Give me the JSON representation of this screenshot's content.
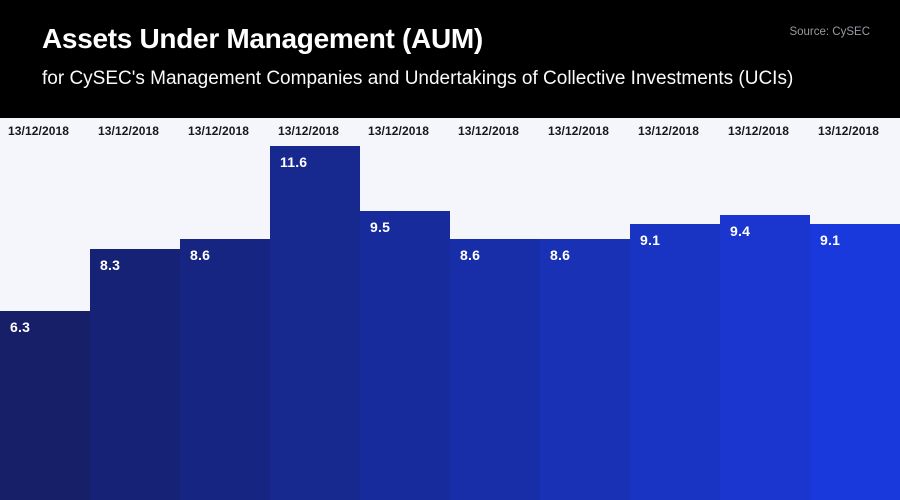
{
  "chart_data": {
    "type": "bar",
    "title": "Assets Under Management (AUM)",
    "subtitle": "for CySEC's Management Companies and Undertakings of Collective Investments (UCIs)",
    "source": "Source: CySEC",
    "categories": [
      "13/12/2018",
      "13/12/2018",
      "13/12/2018",
      "13/12/2018",
      "13/12/2018",
      "13/12/2018",
      "13/12/2018",
      "13/12/2018",
      "13/12/2018",
      "13/12/2018"
    ],
    "values": [
      6.3,
      8.3,
      8.6,
      11.6,
      9.5,
      8.6,
      8.6,
      9.1,
      9.4,
      9.1
    ],
    "value_label_format": "one-decimal",
    "ylim": [
      0,
      11.6
    ],
    "grid": false,
    "legend": false,
    "bar_colors": [
      "#161f68",
      "#162275",
      "#172582",
      "#17288f",
      "#182b9c",
      "#182ea9",
      "#1931b5",
      "#1933c2",
      "#1a36cf",
      "#1a39dc"
    ],
    "colors": {
      "header_background": "#000000",
      "title_text": "#ffffff",
      "source_text": "#9a9aa2",
      "chart_background": "#f5f6fc",
      "date_text": "#17171c",
      "value_text": "#ffffff"
    }
  }
}
